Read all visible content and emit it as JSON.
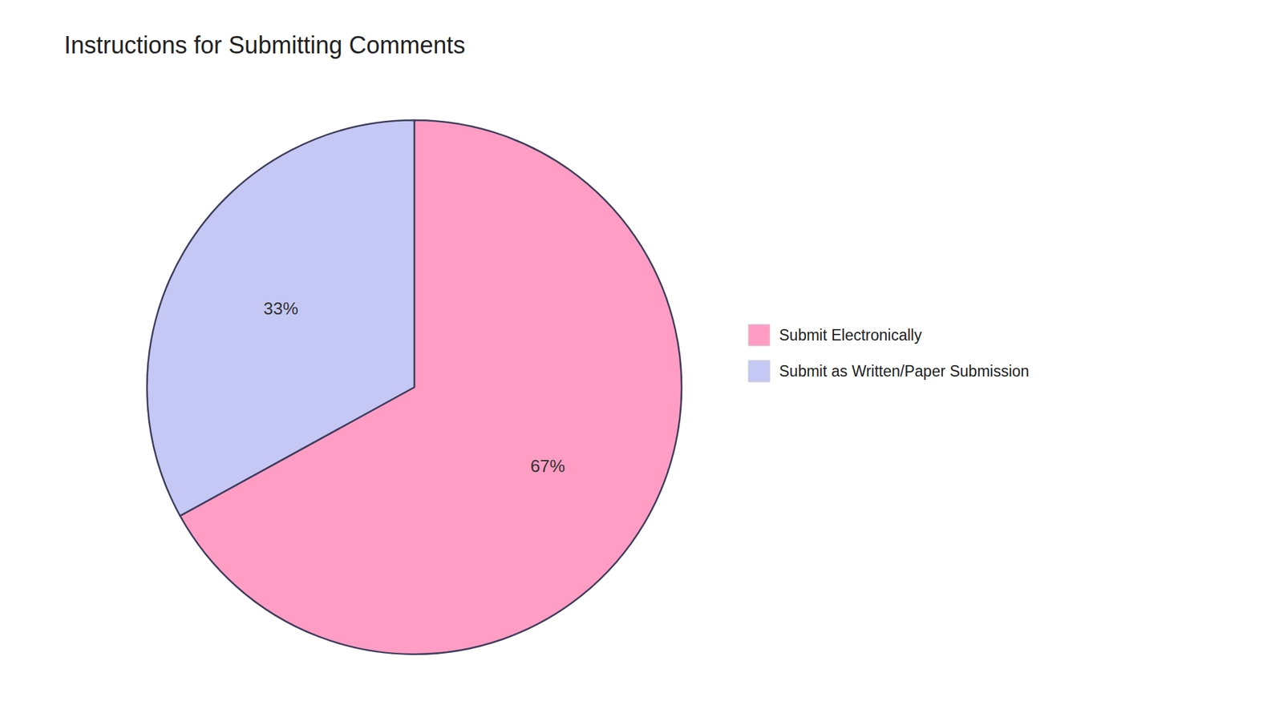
{
  "chart_data": {
    "type": "pie",
    "title": "Instructions for Submitting Comments",
    "categories": [
      "Submit Electronically",
      "Submit as Written/Paper Submission"
    ],
    "values": [
      67,
      33
    ],
    "value_labels": [
      "67%",
      "33%"
    ],
    "colors": [
      "#FF9DC4",
      "#C5C8F5"
    ],
    "data_labels": true,
    "legend": "right"
  }
}
